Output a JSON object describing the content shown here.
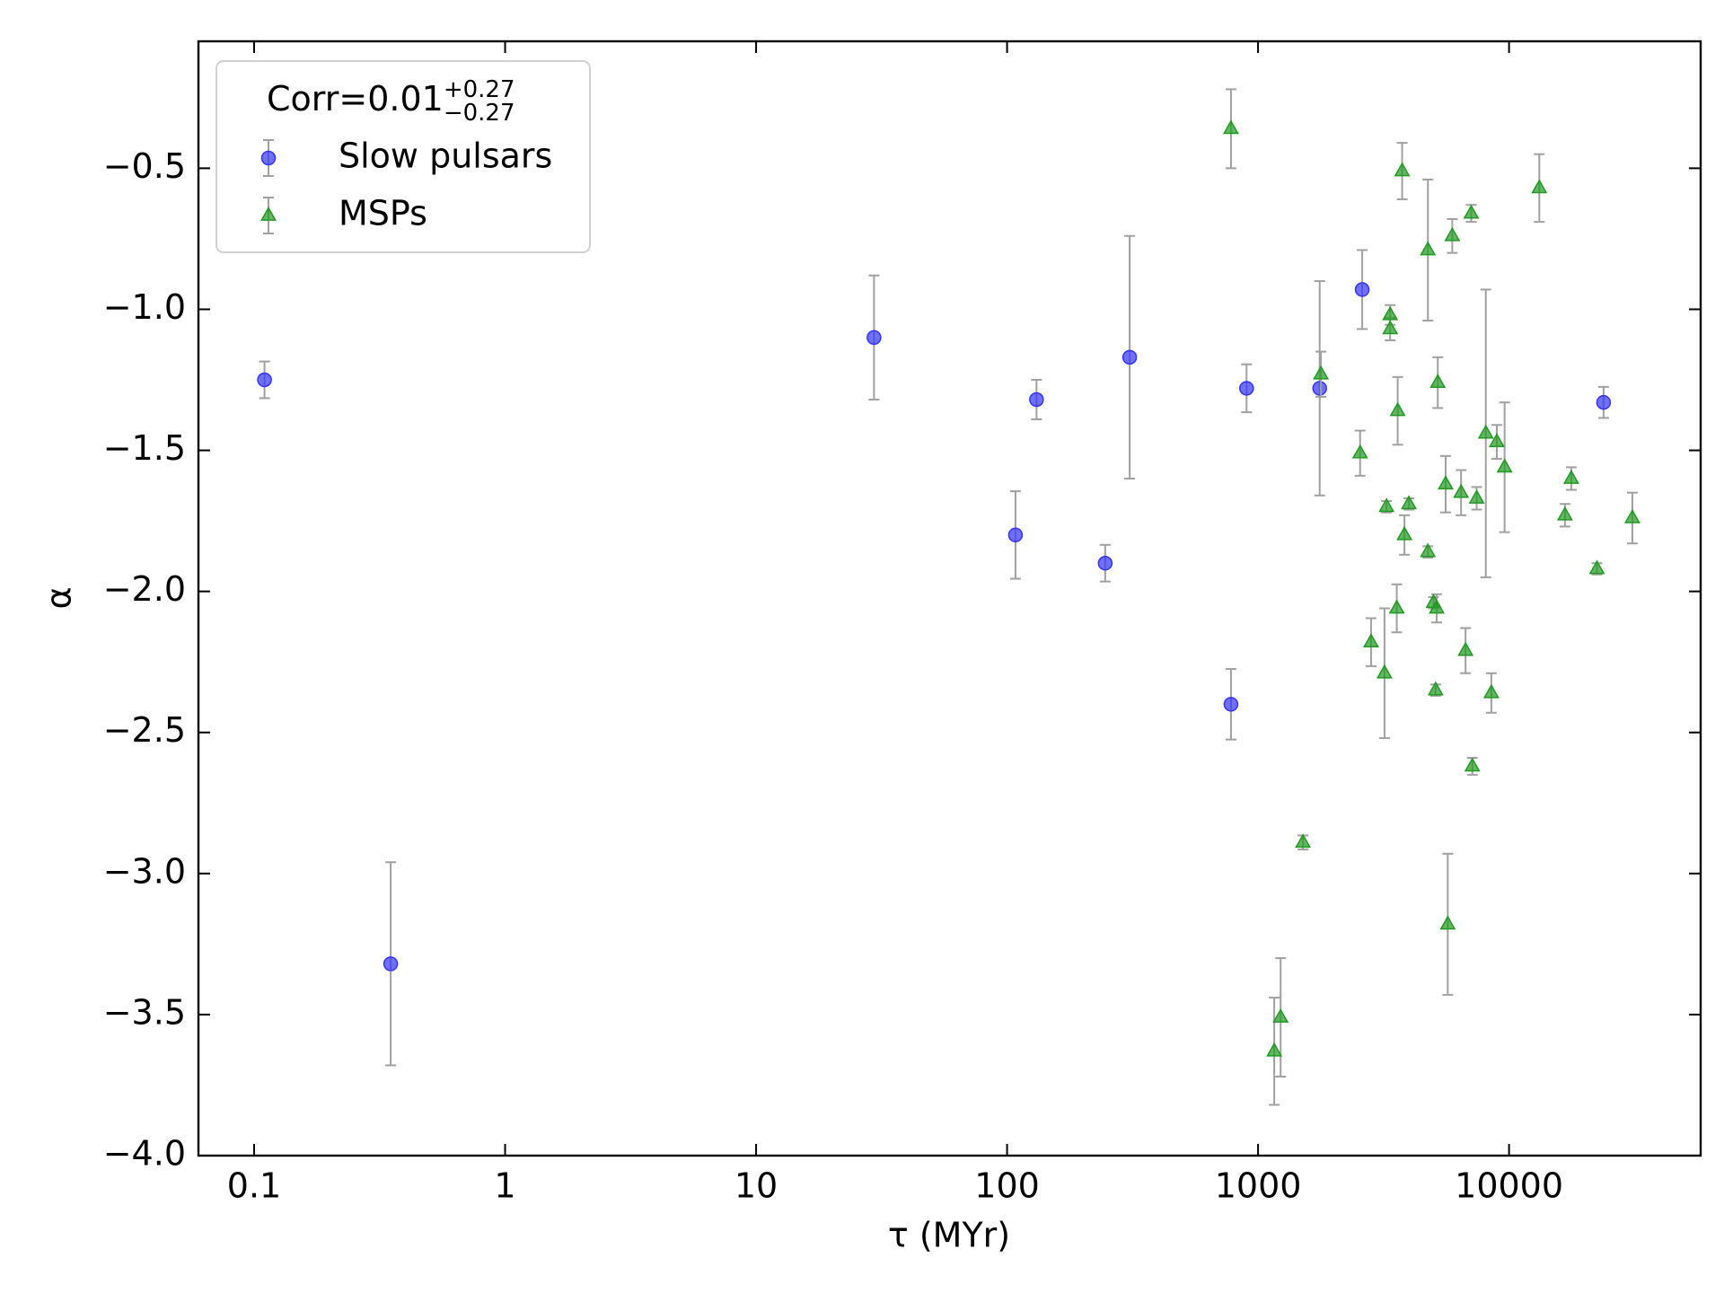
{
  "chart_data": {
    "type": "scatter",
    "xlabel": "τ (MYr)",
    "ylabel": "α",
    "xscale": "log",
    "xlim": [
      0.06,
      58000
    ],
    "xticks": [
      0.1,
      1,
      10,
      100,
      1000,
      10000
    ],
    "ylim": [
      -4.0,
      -0.05
    ],
    "yticks": [
      {
        "value": -0.5,
        "label": "−0.5"
      },
      {
        "value": -1.0,
        "label": "−1.0"
      },
      {
        "value": -1.5,
        "label": "−1.5"
      },
      {
        "value": -2.0,
        "label": "−2.0"
      },
      {
        "value": -2.5,
        "label": "−2.5"
      },
      {
        "value": -3.0,
        "label": "−3.0"
      },
      {
        "value": -3.5,
        "label": "−3.5"
      },
      {
        "value": -4.0,
        "label": "−4.0"
      }
    ],
    "errorbar_color": "#a0a0a0",
    "legend": {
      "loc": "upper left",
      "title": {
        "text": "Corr=0.01",
        "sup": "+0.27",
        "sub": "−0.27"
      }
    },
    "series": [
      {
        "name": "Slow pulsars",
        "color": "#3333ff",
        "marker": "circle",
        "x": [
          0.11,
          0.35,
          29.5,
          108,
          131,
          246,
          308,
          780,
          900,
          1760,
          2600,
          23800
        ],
        "values": [
          -1.25,
          -3.32,
          -1.1,
          -1.8,
          -1.32,
          -1.9,
          -1.17,
          -2.4,
          -1.28,
          -1.28,
          -0.93,
          -1.33
        ],
        "errors": [
          0.065,
          0.36,
          0.22,
          0.155,
          0.07,
          0.065,
          0.43,
          0.125,
          0.085,
          0.38,
          0.14,
          0.055
        ]
      },
      {
        "name": "MSPs",
        "color": "#1f9a1f",
        "marker": "triangle",
        "x": [
          780,
          1160,
          1230,
          1510,
          1780,
          2550,
          2820,
          3190,
          3250,
          3360,
          3360,
          3570,
          3600,
          3750,
          3830,
          3990,
          4750,
          4750,
          5000,
          5150,
          5100,
          5200,
          5590,
          5700,
          5940,
          6440,
          6710,
          7070,
          7140,
          7430,
          8080,
          8500,
          8940,
          9600,
          13200,
          16700,
          17700,
          22400,
          31000
        ],
        "values": [
          -0.36,
          -3.63,
          -3.51,
          -2.89,
          -1.23,
          -1.51,
          -2.18,
          -2.29,
          -1.7,
          -1.02,
          -1.07,
          -2.06,
          -1.36,
          -0.51,
          -1.8,
          -1.69,
          -1.86,
          -0.79,
          -2.04,
          -2.06,
          -2.35,
          -1.26,
          -1.62,
          -3.18,
          -0.74,
          -1.65,
          -2.21,
          -0.66,
          -2.62,
          -1.67,
          -1.44,
          -2.36,
          -1.47,
          -1.56,
          -0.57,
          -1.73,
          -1.6,
          -1.92,
          -1.74
        ],
        "errors": [
          0.14,
          0.19,
          0.21,
          0.025,
          0.08,
          0.08,
          0.085,
          0.23,
          0.02,
          0.035,
          0.04,
          0.085,
          0.12,
          0.1,
          0.07,
          0.02,
          0.02,
          0.25,
          0.02,
          0.05,
          0.02,
          0.09,
          0.1,
          0.25,
          0.06,
          0.08,
          0.08,
          0.03,
          0.03,
          0.04,
          0.51,
          0.07,
          0.06,
          0.23,
          0.12,
          0.04,
          0.04,
          0.02,
          0.09
        ]
      }
    ]
  }
}
